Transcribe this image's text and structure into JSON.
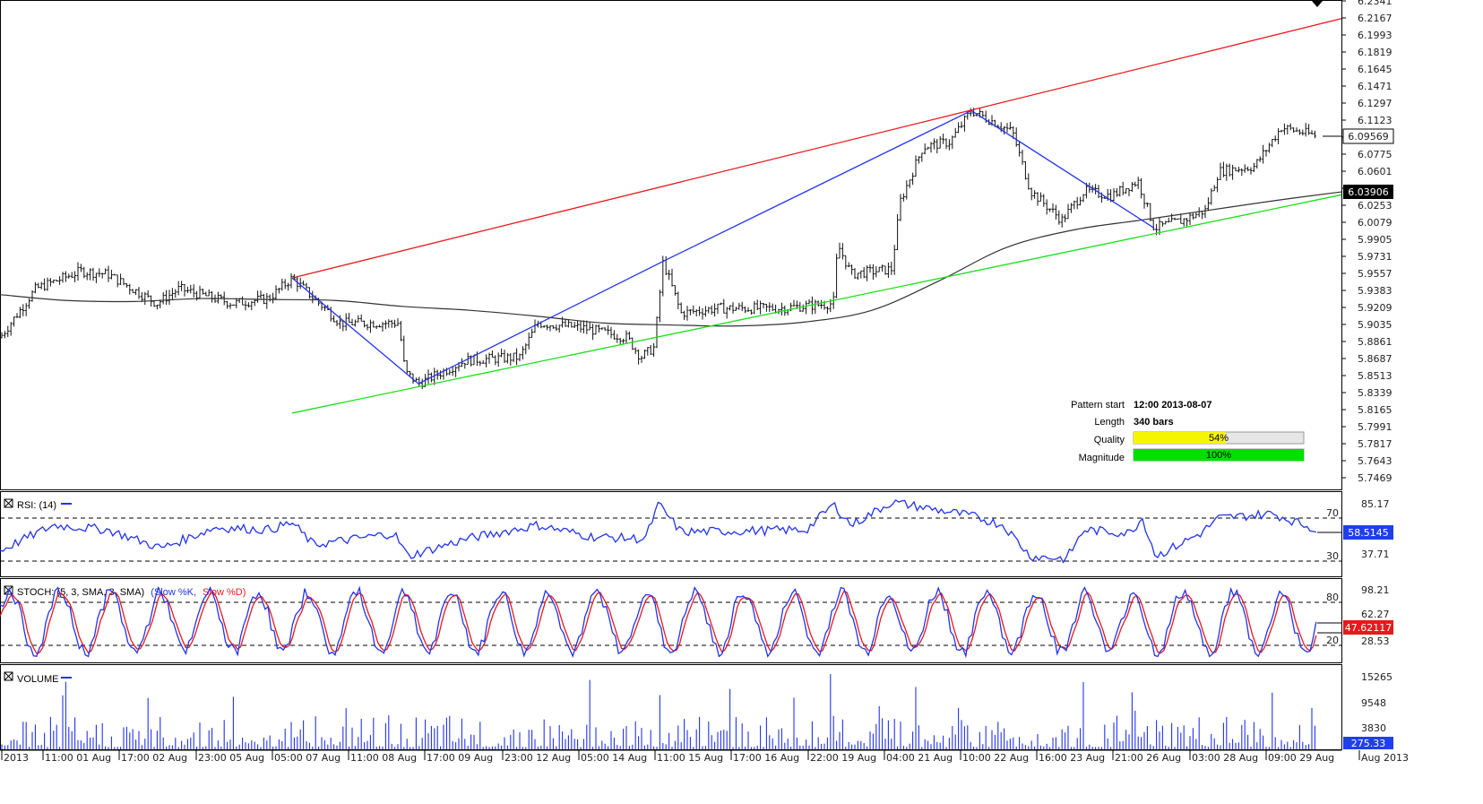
{
  "chart_data": {
    "type": "candlestick",
    "main_panel": {
      "y_ticks": [
        "6.2341",
        "6.2167",
        "6.1993",
        "6.1819",
        "6.1645",
        "6.1471",
        "6.1297",
        "6.1123",
        "6.0949",
        "6.0775",
        "6.0601",
        "6.0427",
        "6.0253",
        "6.0079",
        "5.9905",
        "5.9731",
        "5.9557",
        "5.9383",
        "5.9209",
        "5.9035",
        "5.8861",
        "5.8687",
        "5.8513",
        "5.8339",
        "5.8165",
        "5.7991",
        "5.7817",
        "5.7643",
        "5.7469"
      ],
      "ylim": [
        5.7469,
        6.2341
      ],
      "price_label": "6.09569",
      "ma_label": "6.03906",
      "pattern_points": [
        {
          "name": "start",
          "price": 5.951
        },
        {
          "name": "low1",
          "price": 5.843
        },
        {
          "name": "high1",
          "price": 5.968
        },
        {
          "name": "high2",
          "price": 6.122
        },
        {
          "name": "low2",
          "price": 6.002
        }
      ],
      "resistance_line": {
        "start": 5.951,
        "end": 6.216
      },
      "support_line": {
        "start": 5.813,
        "end": 6.036
      },
      "moving_average": [
        5.934,
        5.928,
        5.927,
        5.93,
        5.929,
        5.928,
        5.922,
        5.918,
        5.912,
        5.905,
        5.903,
        5.902,
        5.906,
        5.918,
        5.948,
        5.982,
        6.0,
        6.01,
        6.02,
        6.03,
        6.039
      ]
    },
    "pattern_info": {
      "pattern_start_label": "Pattern start",
      "pattern_start_value": "12:00 2013-08-07",
      "length_label": "Length",
      "length_value": "340 bars",
      "quality_label": "Quality",
      "quality_value": "54%",
      "quality_fraction": 0.54,
      "magnitude_label": "Magnitude",
      "magnitude_value": "100%",
      "magnitude_fraction": 1.0
    },
    "rsi_panel": {
      "title": "RSI: (14)",
      "y_ticks": [
        "85.17",
        "37.71"
      ],
      "levels": [
        "70",
        "30"
      ],
      "current": "58.5145"
    },
    "stoch_panel": {
      "title_prefix": "STOCH: (5, 3, SMA, 3, SMA)",
      "k_label": "(Slow %K,",
      "d_label": "Slow %D)",
      "y_ticks": [
        "98.21",
        "28.53"
      ],
      "levels": [
        "80",
        "20"
      ],
      "current_k": "62.27",
      "current_d": "47.62117"
    },
    "volume_panel": {
      "title": "VOLUME",
      "y_ticks": [
        "15265",
        "9548",
        "3830"
      ],
      "current": "275.33"
    },
    "x_labels": [
      "2013",
      "11:00 01 Aug",
      "17:00 02 Aug",
      "23:00 05 Aug",
      "05:00 07 Aug",
      "11:00 08 Aug",
      "17:00 09 Aug",
      "23:00 12 Aug",
      "05:00 14 Aug",
      "11:00 15 Aug",
      "17:00 16 Aug",
      "22:00 19 Aug",
      "04:00 21 Aug",
      "10:00 22 Aug",
      "16:00 23 Aug",
      "21:00 26 Aug",
      "03:00 28 Aug",
      "09:00 29 Aug",
      "Aug 2013"
    ],
    "colors": {
      "resistance": "#e8191c",
      "support": "#19e019",
      "pattern": "#2233ee",
      "ma": "#333333",
      "bars": "#111111",
      "quality": "#f5f500",
      "magnitude": "#00e000",
      "stoch_k": "#2233ee",
      "stoch_d": "#e8191c"
    }
  }
}
